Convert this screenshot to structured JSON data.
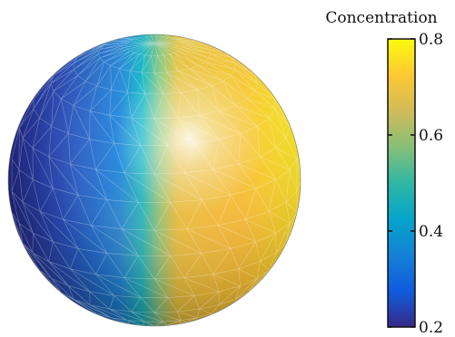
{
  "chart_data": {
    "type": "heatmap",
    "colorbar": {
      "label": "Concentration",
      "ticks": [
        0.2,
        0.4,
        0.6,
        0.8
      ],
      "tick_labels": [
        "0.2",
        "0.4",
        "0.6",
        "0.8"
      ],
      "range": [
        0.2,
        0.8
      ],
      "colormap": "parula"
    },
    "surface": {
      "shape": "sphere",
      "mesh": "triangulated",
      "left_hemisphere_value": 0.3,
      "right_hemisphere_value": 0.75,
      "interface": "vertical diffuse band"
    },
    "grid": false,
    "legend_placement": "right"
  }
}
